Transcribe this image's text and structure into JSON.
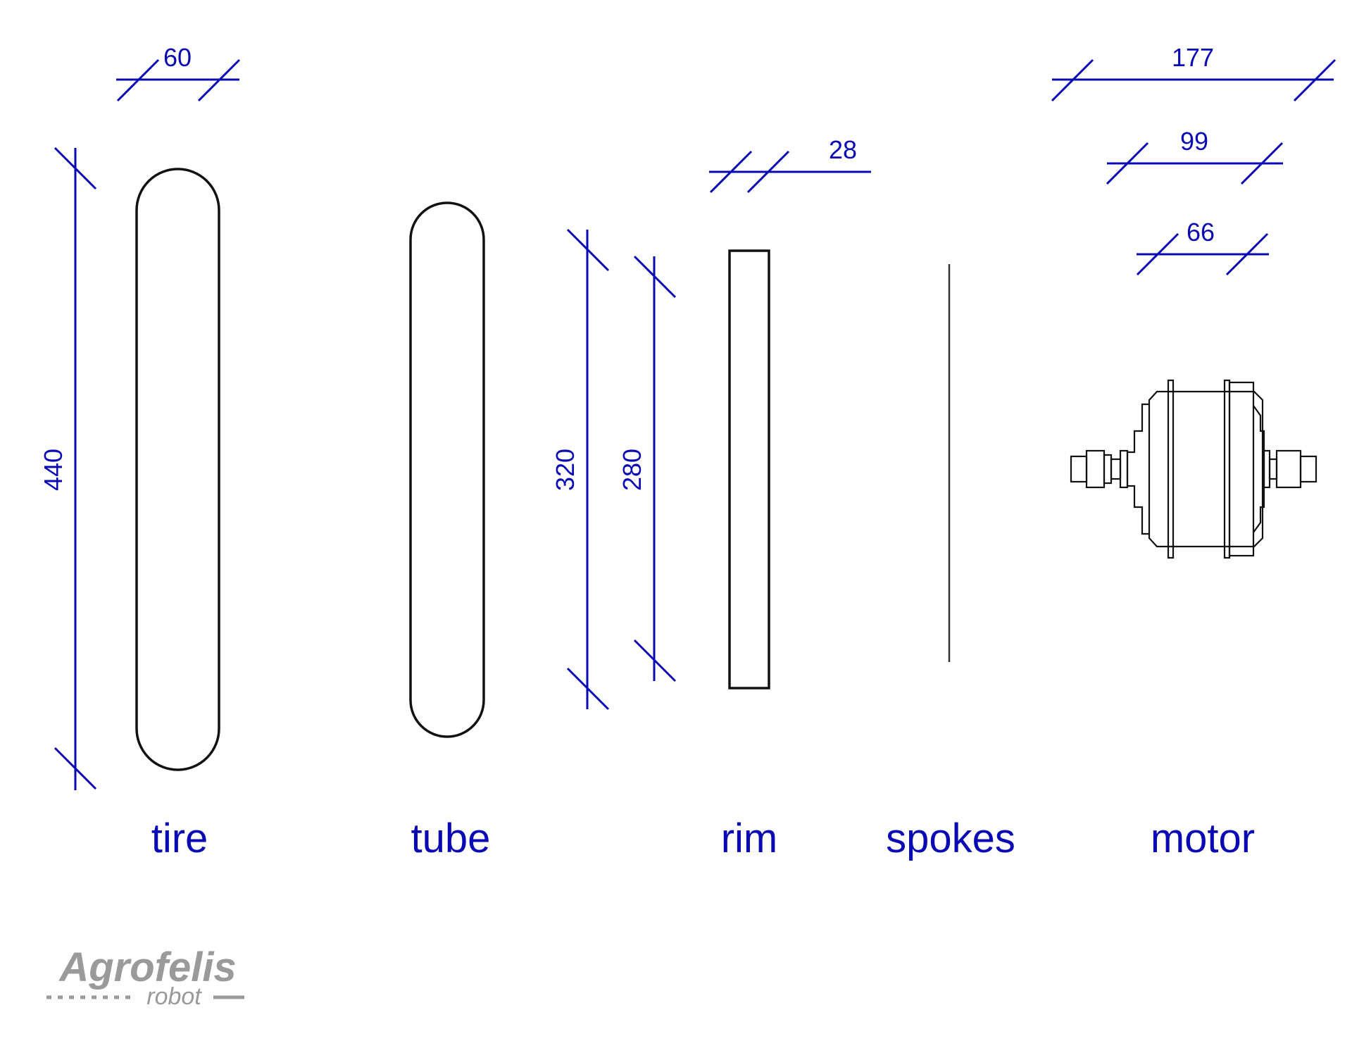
{
  "parts": [
    {
      "id": "tire",
      "label": "tire"
    },
    {
      "id": "tube",
      "label": "tube"
    },
    {
      "id": "rim",
      "label": "rim"
    },
    {
      "id": "spokes",
      "label": "spokes"
    },
    {
      "id": "motor",
      "label": "motor"
    }
  ],
  "dimensions": {
    "tire_width": "60",
    "tire_diameter": "440",
    "rim_outer_diameter": "320",
    "rim_inner_diameter": "280",
    "rim_width": "28",
    "motor_axle_length": "177",
    "motor_flange_width": "99",
    "motor_hub_width": "66"
  },
  "logo": {
    "name": "Agrofelis",
    "tagline": "robot"
  },
  "colors": {
    "dimension": "#0a0ab4",
    "outline": "#111111",
    "logo": "#9a9a9a",
    "background": "#ffffff"
  }
}
